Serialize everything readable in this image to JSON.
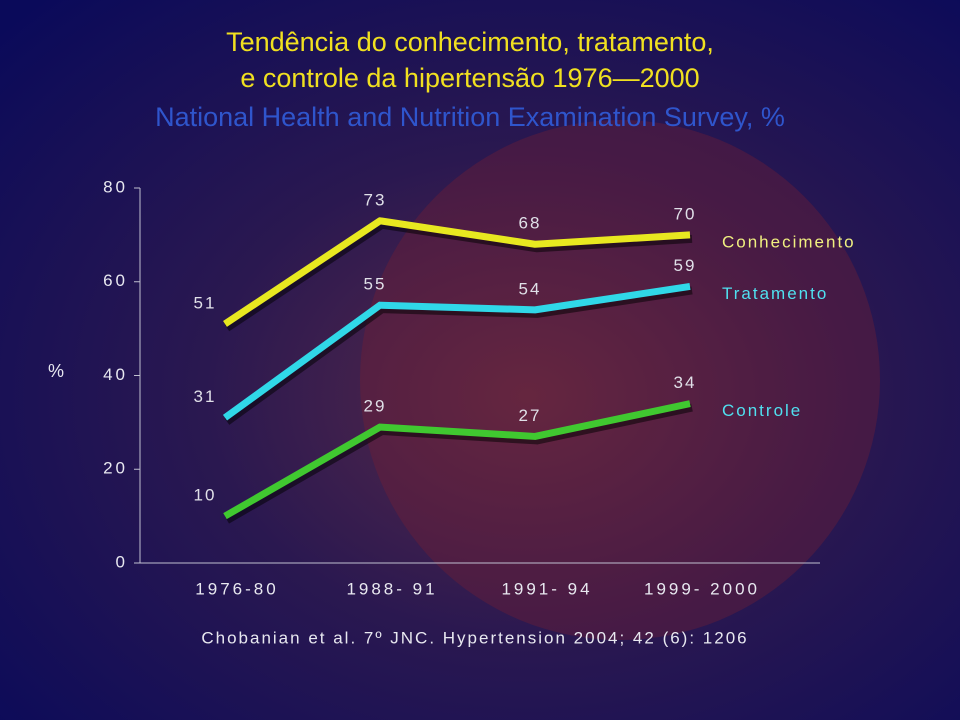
{
  "chart_data": {
    "type": "line",
    "title": [
      "Tendência do conhecimento, tratamento,",
      "e controle da hipertensão 1976—2000"
    ],
    "subtitle": "National Health and Nutrition Examination Survey, %",
    "y_label": "%",
    "categories": [
      "1976-80",
      "1988- 91",
      "1991- 94",
      "1999- 2000"
    ],
    "series": [
      {
        "name": "Conhecimento",
        "color": "#e8e820",
        "values": [
          51,
          73,
          68,
          70
        ]
      },
      {
        "name": "Tratamento",
        "color": "#30d8e8",
        "values": [
          31,
          55,
          54,
          59
        ]
      },
      {
        "name": "Controle",
        "color": "#40c830",
        "values": [
          10,
          29,
          27,
          34
        ]
      }
    ],
    "ylim": [
      0,
      80
    ],
    "yticks": [
      0,
      20,
      40,
      60,
      80
    ],
    "grid": false,
    "source": "Chobanian et al. 7º JNC. Hypertension 2004; 42 (6): 1206"
  }
}
